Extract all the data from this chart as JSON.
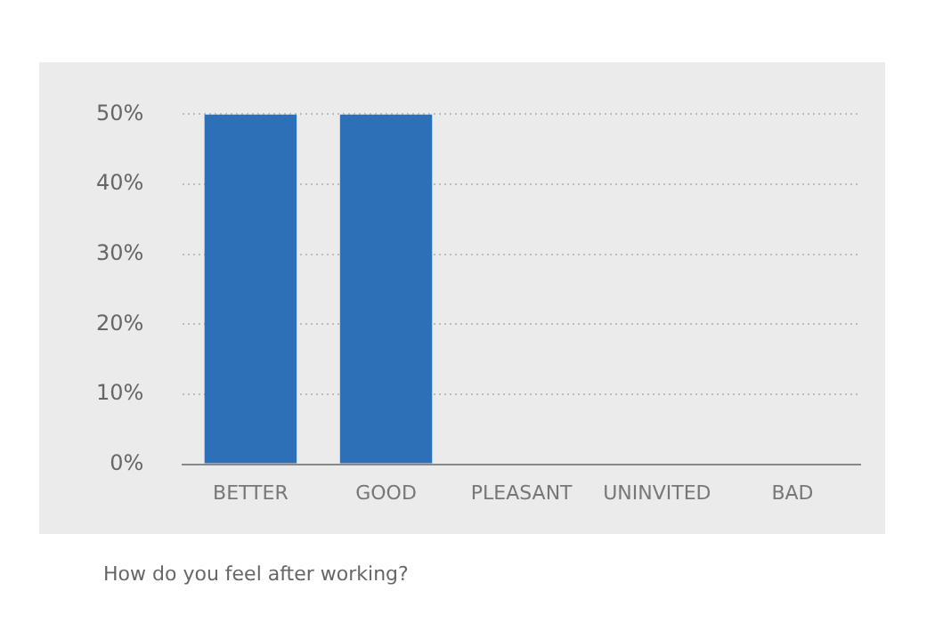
{
  "chart_data": {
    "type": "bar",
    "categories": [
      "BETTER",
      "GOOD",
      "PLEASANT",
      "UNINVITED",
      "BAD"
    ],
    "values": [
      50,
      50,
      0,
      0,
      0
    ],
    "color": "#2e70b8",
    "ylim": [
      0,
      50
    ],
    "yticks": [
      {
        "value": 0,
        "label": "0%"
      },
      {
        "value": 10,
        "label": "10%"
      },
      {
        "value": 20,
        "label": "20%"
      },
      {
        "value": 30,
        "label": "30%"
      },
      {
        "value": 40,
        "label": "40%"
      },
      {
        "value": 50,
        "label": "50%"
      }
    ],
    "grid": "y",
    "legend": false,
    "annotations": [
      "How do you feel after working?"
    ]
  }
}
